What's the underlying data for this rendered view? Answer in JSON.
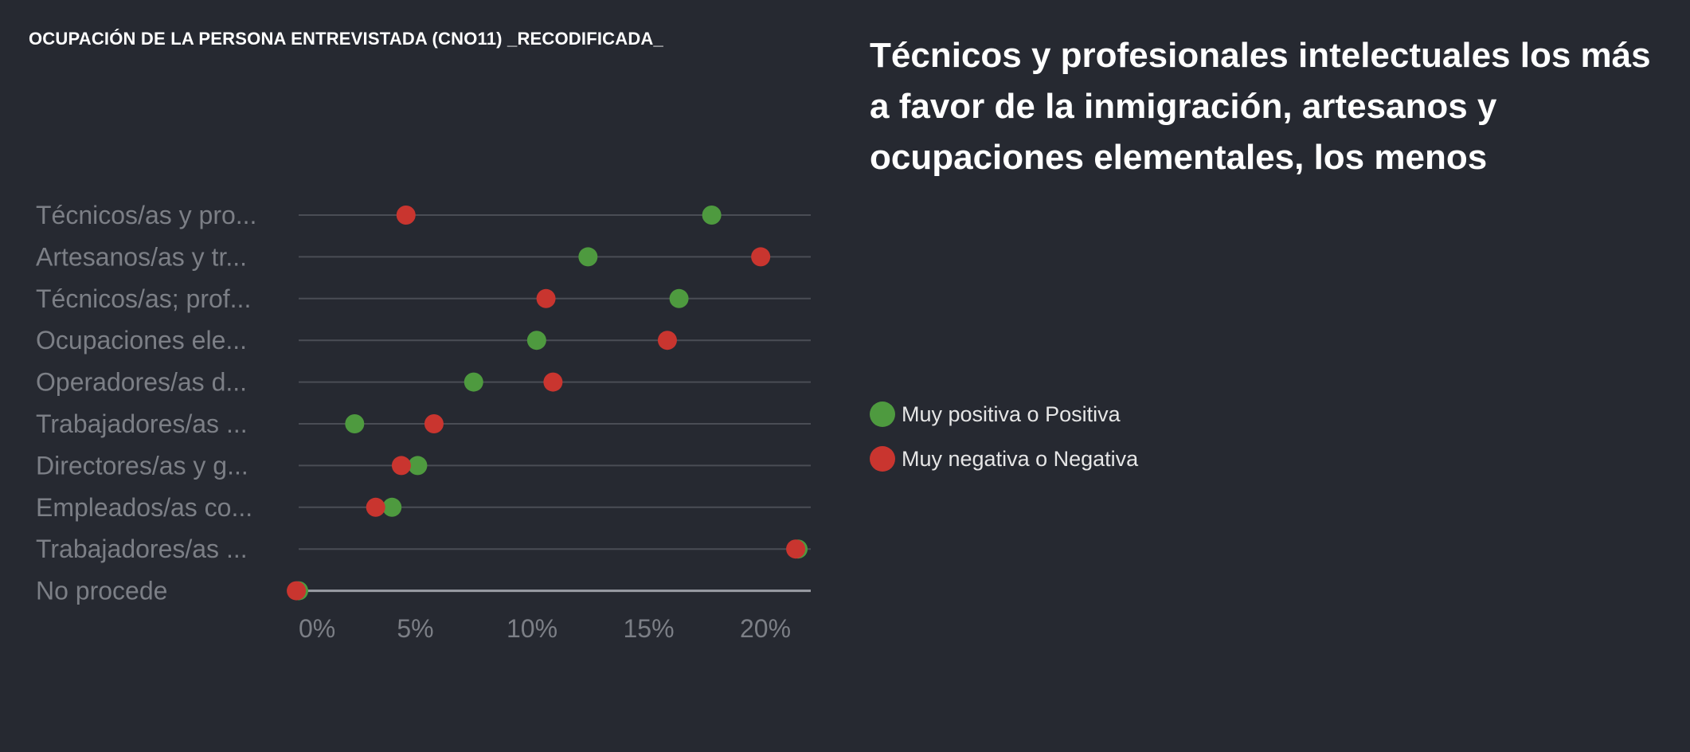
{
  "chart_title": "OCUPACIÓN DE LA PERSONA ENTREVISTADA (CNO11) _RECODIFICADA_",
  "headline": "Técnicos y profesionales intelectuales los más a favor de la inmigración, artesanos y ocupaciones elementales, los menos",
  "colors": {
    "background": "#262931",
    "positive": "#4e9a3f",
    "negative": "#c9352f",
    "gridline": "#4a4d55",
    "baseline": "#9a9da4",
    "tick_text": "#7c7f86"
  },
  "chart_data": {
    "type": "dot-plot",
    "title": "OCUPACIÓN DE LA PERSONA ENTREVISTADA (CNO11) _RECODIFICADA_",
    "categories": [
      "Técnicos/as y pro...",
      "Artesanos/as y tr...",
      "Técnicos/as; prof...",
      "Ocupaciones ele...",
      "Operadores/as d...",
      "Trabajadores/as ...",
      "Directores/as y g...",
      "Empleados/as co...",
      "Trabajadores/as ...",
      "No procede"
    ],
    "series": [
      {
        "name": "Muy positiva o Positiva",
        "color": "#4e9a3f",
        "values": [
          17.7,
          12.4,
          16.3,
          10.2,
          7.5,
          2.4,
          5.1,
          4.0,
          21.4,
          0.0
        ]
      },
      {
        "name": "Muy negativa o Negativa",
        "color": "#c9352f",
        "values": [
          4.6,
          19.8,
          10.6,
          15.8,
          10.9,
          5.8,
          4.4,
          3.3,
          21.3,
          -0.1
        ]
      }
    ],
    "x_ticks": [
      "0%",
      "5%",
      "10%",
      "15%",
      "20%"
    ],
    "x_tick_values": [
      0,
      5,
      10,
      15,
      20
    ],
    "xlim": [
      0,
      22
    ],
    "legend_position": "right"
  }
}
